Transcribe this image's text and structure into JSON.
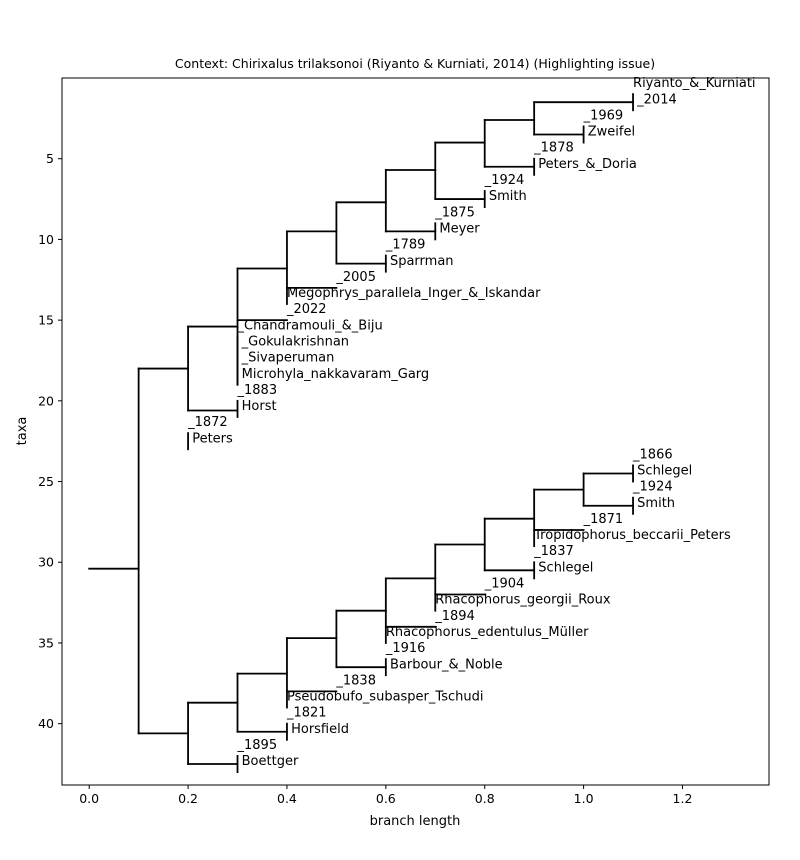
{
  "chart_data": {
    "type": "tree",
    "title": "Context: Chirixalus trilaksonoi (Riyanto & Kurniati, 2014) (Highlighting issue)",
    "xlabel": "branch length",
    "ylabel": "taxa",
    "xlim": [
      -0.055,
      1.375
    ],
    "ylim": [
      43.8,
      0.0
    ],
    "xticks": [
      0.0,
      0.2,
      0.4,
      0.6,
      0.8,
      1.0,
      1.2
    ],
    "xtick_labels": [
      "0.0",
      "0.2",
      "0.4",
      "0.6",
      "0.8",
      "1.0",
      "1.2"
    ],
    "yticks": [
      5,
      10,
      15,
      20,
      25,
      30,
      35,
      40
    ],
    "ytick_labels": [
      "5",
      "10",
      "15",
      "20",
      "25",
      "30",
      "35",
      "40"
    ],
    "grid": false,
    "line_color": "#000000",
    "branches": [
      {
        "x0": 0.0,
        "x1": 0.1,
        "y": 30.4
      },
      {
        "x": 0.1,
        "y0": 18.0,
        "y1": 40.6
      },
      {
        "x0": 0.1,
        "x1": 0.2,
        "y": 18.0
      },
      {
        "x0": 0.1,
        "x1": 0.2,
        "y": 40.6
      },
      {
        "x": 0.2,
        "y0": 15.4,
        "y1": 20.6
      },
      {
        "x0": 0.2,
        "x1": 0.3,
        "y": 15.4
      },
      {
        "x0": 0.2,
        "x1": 0.3,
        "y": 20.6
      },
      {
        "x": 0.3,
        "y0": 11.8,
        "y1": 19.0
      },
      {
        "x0": 0.3,
        "x1": 0.4,
        "y": 11.8
      },
      {
        "x0": 0.3,
        "x1": 0.4,
        "y": 15.0
      },
      {
        "x": 0.4,
        "y0": 9.5,
        "y1": 14.0
      },
      {
        "x0": 0.4,
        "x1": 0.5,
        "y": 9.5
      },
      {
        "x0": 0.4,
        "x1": 0.5,
        "y": 13.0
      },
      {
        "x": 0.5,
        "y0": 7.7,
        "y1": 11.5
      },
      {
        "x0": 0.5,
        "x1": 0.6,
        "y": 7.7
      },
      {
        "x0": 0.5,
        "x1": 0.6,
        "y": 11.5
      },
      {
        "x": 0.6,
        "y0": 5.7,
        "y1": 9.5
      },
      {
        "x0": 0.6,
        "x1": 0.7,
        "y": 5.7
      },
      {
        "x0": 0.6,
        "x1": 0.7,
        "y": 9.5
      },
      {
        "x": 0.7,
        "y0": 4.0,
        "y1": 7.5
      },
      {
        "x0": 0.7,
        "x1": 0.8,
        "y": 4.0
      },
      {
        "x0": 0.7,
        "x1": 0.8,
        "y": 7.5
      },
      {
        "x": 0.8,
        "y0": 2.6,
        "y1": 5.5
      },
      {
        "x0": 0.8,
        "x1": 0.9,
        "y": 2.6
      },
      {
        "x0": 0.8,
        "x1": 0.9,
        "y": 5.5
      },
      {
        "x": 0.9,
        "y0": 1.5,
        "y1": 3.5
      },
      {
        "x0": 0.9,
        "x1": 1.1,
        "y": 1.5
      },
      {
        "x0": 0.9,
        "x1": 1.0,
        "y": 3.5
      },
      {
        "x": 0.2,
        "y0": 38.7,
        "y1": 42.5
      },
      {
        "x0": 0.2,
        "x1": 0.3,
        "y": 38.7
      },
      {
        "x0": 0.2,
        "x1": 0.3,
        "y": 42.5
      },
      {
        "x": 0.3,
        "y0": 36.9,
        "y1": 40.5
      },
      {
        "x0": 0.3,
        "x1": 0.4,
        "y": 36.9
      },
      {
        "x0": 0.3,
        "x1": 0.4,
        "y": 40.5
      },
      {
        "x": 0.4,
        "y0": 34.7,
        "y1": 39.0
      },
      {
        "x0": 0.4,
        "x1": 0.5,
        "y": 34.7
      },
      {
        "x0": 0.4,
        "x1": 0.5,
        "y": 38.0
      },
      {
        "x": 0.5,
        "y0": 33.0,
        "y1": 36.5
      },
      {
        "x0": 0.5,
        "x1": 0.6,
        "y": 33.0
      },
      {
        "x0": 0.5,
        "x1": 0.6,
        "y": 36.5
      },
      {
        "x": 0.6,
        "y0": 31.0,
        "y1": 35.0
      },
      {
        "x0": 0.6,
        "x1": 0.7,
        "y": 31.0
      },
      {
        "x0": 0.6,
        "x1": 0.7,
        "y": 34.0
      },
      {
        "x": 0.7,
        "y0": 28.9,
        "y1": 33.0
      },
      {
        "x0": 0.7,
        "x1": 0.8,
        "y": 28.9
      },
      {
        "x0": 0.7,
        "x1": 0.8,
        "y": 32.0
      },
      {
        "x": 0.8,
        "y0": 27.3,
        "y1": 30.5
      },
      {
        "x0": 0.8,
        "x1": 0.9,
        "y": 27.3
      },
      {
        "x0": 0.8,
        "x1": 0.9,
        "y": 30.5
      },
      {
        "x": 0.9,
        "y0": 25.5,
        "y1": 29.0
      },
      {
        "x0": 0.9,
        "x1": 1.0,
        "y": 25.5
      },
      {
        "x0": 0.9,
        "x1": 1.0,
        "y": 28.0
      },
      {
        "x": 1.0,
        "y0": 24.5,
        "y1": 26.5
      },
      {
        "x0": 1.0,
        "x1": 1.1,
        "y": 24.5
      },
      {
        "x0": 1.0,
        "x1": 1.1,
        "y": 26.5
      }
    ],
    "leaves": [
      {
        "x": 1.1,
        "y0": 1.0,
        "y1": 2.0,
        "lines": [
          " Riyanto_&_Kurniati",
          " _2014"
        ]
      },
      {
        "x": 1.0,
        "y0": 3.0,
        "y1": 4.0,
        "lines": [
          " _1969",
          " Zweifel"
        ]
      },
      {
        "x": 0.9,
        "y0": 5.0,
        "y1": 6.0,
        "lines": [
          " _1878",
          " Peters_&_Doria"
        ]
      },
      {
        "x": 0.8,
        "y0": 7.0,
        "y1": 8.0,
        "lines": [
          " _1924",
          " Smith"
        ]
      },
      {
        "x": 0.7,
        "y0": 9.0,
        "y1": 10.0,
        "lines": [
          " _1875",
          " Meyer"
        ]
      },
      {
        "x": 0.6,
        "y0": 11.0,
        "y1": 12.0,
        "lines": [
          " _1789",
          " Sparrman"
        ]
      },
      {
        "x": 0.5,
        "y0": 13.0,
        "y1": 13.0,
        "lines": [
          " _2005"
        ]
      },
      {
        "x": 0.4,
        "y0": 14.0,
        "y1": 14.0,
        "lines": [
          " Megophrys_parallela_Inger_&_Iskandar"
        ]
      },
      {
        "x": 0.4,
        "y0": 15.0,
        "y1": 15.0,
        "lines": [
          " _2022"
        ]
      },
      {
        "x": 0.3,
        "y0": 16.0,
        "y1": 19.0,
        "lines": [
          " _Chandramouli_&_Biju",
          " _Gokulakrishnan",
          " _Sivaperuman",
          " Microhyla_nakkavaram_Garg"
        ]
      },
      {
        "x": 0.3,
        "y0": 20.0,
        "y1": 21.0,
        "lines": [
          " _1883",
          " Horst"
        ]
      },
      {
        "x": 0.2,
        "y0": 22.0,
        "y1": 23.0,
        "lines": [
          " _1872",
          " Peters"
        ]
      },
      {
        "x": 1.1,
        "y0": 24.0,
        "y1": 25.0,
        "lines": [
          " _1866",
          " Schlegel"
        ]
      },
      {
        "x": 1.1,
        "y0": 26.0,
        "y1": 27.0,
        "lines": [
          " _1924",
          " Smith"
        ]
      },
      {
        "x": 1.0,
        "y0": 28.0,
        "y1": 28.0,
        "lines": [
          " _1871"
        ]
      },
      {
        "x": 0.9,
        "y0": 29.0,
        "y1": 29.0,
        "lines": [
          " Tropidophorus_beccarii_Peters"
        ]
      },
      {
        "x": 0.9,
        "y0": 30.0,
        "y1": 31.0,
        "lines": [
          " _1837",
          " Schlegel"
        ]
      },
      {
        "x": 0.8,
        "y0": 32.0,
        "y1": 32.0,
        "lines": [
          " _1904"
        ]
      },
      {
        "x": 0.7,
        "y0": 33.0,
        "y1": 33.0,
        "lines": [
          " Rhacophorus_georgii_Roux"
        ]
      },
      {
        "x": 0.7,
        "y0": 34.0,
        "y1": 34.0,
        "lines": [
          " _1894"
        ]
      },
      {
        "x": 0.6,
        "y0": 35.0,
        "y1": 35.0,
        "lines": [
          " Rhacophorus_edentulus_Müller"
        ]
      },
      {
        "x": 0.6,
        "y0": 36.0,
        "y1": 37.0,
        "lines": [
          " _1916",
          " Barbour_&_Noble"
        ]
      },
      {
        "x": 0.5,
        "y0": 38.0,
        "y1": 38.0,
        "lines": [
          " _1838"
        ]
      },
      {
        "x": 0.4,
        "y0": 39.0,
        "y1": 39.0,
        "lines": [
          " Pseudobufo_subasper_Tschudi"
        ]
      },
      {
        "x": 0.4,
        "y0": 40.0,
        "y1": 41.0,
        "lines": [
          " _1821",
          " Horsfield"
        ]
      },
      {
        "x": 0.3,
        "y0": 42.0,
        "y1": 43.0,
        "lines": [
          " _1895",
          " Boettger"
        ]
      }
    ]
  }
}
